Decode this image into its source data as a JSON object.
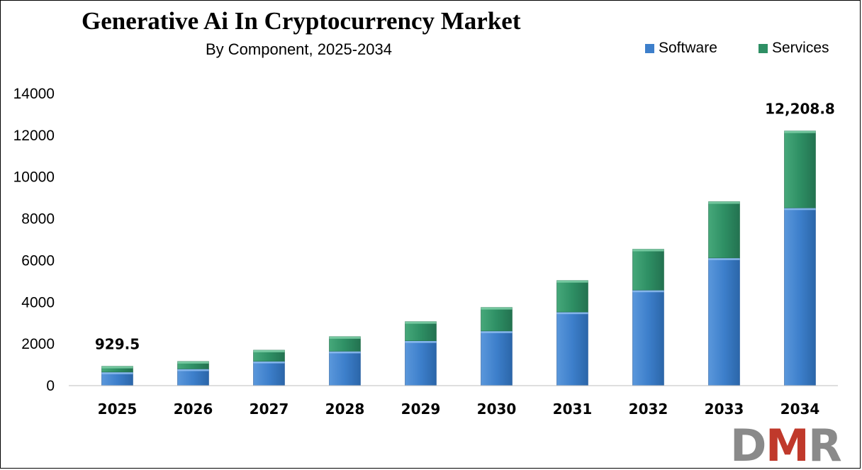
{
  "chart_data": {
    "type": "bar",
    "stacked": true,
    "title": "Generative Ai In Cryptocurrency Market",
    "subtitle": "By Component,  2025-2034",
    "categories": [
      "2025",
      "2026",
      "2027",
      "2028",
      "2029",
      "2030",
      "2031",
      "2032",
      "2033",
      "2034"
    ],
    "series": [
      {
        "name": "Software",
        "color": "#3d7fcb",
        "values": [
          650,
          800,
          1170,
          1650,
          2150,
          2620,
          3530,
          4580,
          6120,
          8520
        ]
      },
      {
        "name": "Services",
        "color": "#2e8f64",
        "values": [
          279.5,
          360,
          530,
          700,
          920,
          1130,
          1510,
          1960,
          2700,
          3688.8
        ]
      }
    ],
    "ylim": [
      0,
      14000
    ],
    "yticks": [
      0,
      2000,
      4000,
      6000,
      8000,
      10000,
      12000,
      14000
    ],
    "grid": false,
    "legend_position": "top-right",
    "annotations": [
      {
        "category": "2025",
        "text": "929.5"
      },
      {
        "category": "2034",
        "text": "12,208.8"
      }
    ]
  },
  "logo": {
    "text": "DMR",
    "colors": [
      "#8a8a8a",
      "#c0392b",
      "#8a8a8a"
    ]
  }
}
